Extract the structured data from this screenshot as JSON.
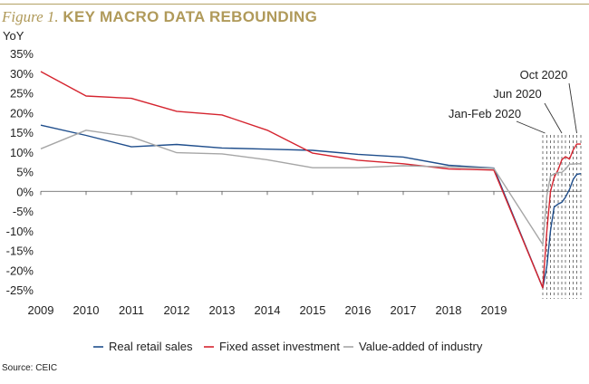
{
  "figure": {
    "prefix": "Figure 1.",
    "title": "KEY MACRO DATA REBOUNDING",
    "source": "Source: CEIC"
  },
  "chart_data": {
    "type": "line",
    "ylabel": "YoY",
    "xlabel": "",
    "ylim": [
      -25,
      35
    ],
    "xlim": [
      2009,
      2020.92
    ],
    "yticks": [
      35,
      30,
      25,
      20,
      15,
      10,
      5,
      0,
      -5,
      -10,
      -15,
      -20,
      -25
    ],
    "ytick_labels": [
      "35%",
      "30%",
      "25%",
      "20%",
      "15%",
      "10%",
      "5%",
      "0%",
      "-5%",
      "-10%",
      "-15%",
      "-20%",
      "-25%"
    ],
    "xticks": [
      2009,
      2010,
      2011,
      2012,
      2013,
      2014,
      2015,
      2016,
      2017,
      2018,
      2019
    ],
    "xtick_labels": [
      "2009",
      "2010",
      "2011",
      "2012",
      "2013",
      "2014",
      "2015",
      "2016",
      "2017",
      "2018",
      "2019"
    ],
    "legend_position": "bottom",
    "grid": false,
    "monthly_markers": [
      2020.08,
      2020.17,
      2020.25,
      2020.33,
      2020.42,
      2020.5,
      2020.58,
      2020.67,
      2020.75,
      2020.83,
      2020.92
    ],
    "annotations": [
      {
        "text": "Oct 2020",
        "x": 2020.83
      },
      {
        "text": "Jun 2020",
        "x": 2020.5
      },
      {
        "text": "Jan-Feb 2020",
        "x": 2020.13
      }
    ],
    "series": [
      {
        "name": "Real retail sales",
        "color": "#1f4e8c",
        "x": [
          2009,
          2010,
          2011,
          2012,
          2013,
          2014,
          2015,
          2016,
          2017,
          2018,
          2019,
          2020.08,
          2020.17,
          2020.25,
          2020.33,
          2020.42,
          2020.5,
          2020.58,
          2020.67,
          2020.75,
          2020.83,
          2020.92
        ],
        "y": [
          16.8,
          14.2,
          11.3,
          11.9,
          11.0,
          10.7,
          10.4,
          9.4,
          8.7,
          6.6,
          5.9,
          -24.5,
          -19.0,
          -10.0,
          -4.0,
          -3.2,
          -2.8,
          -1.5,
          0.5,
          3.0,
          4.3,
          4.5
        ]
      },
      {
        "name": "Fixed asset investment",
        "color": "#d5242f",
        "x": [
          2009,
          2010,
          2011,
          2012,
          2013,
          2014,
          2015,
          2016,
          2017,
          2018,
          2019,
          2020.08,
          2020.17,
          2020.25,
          2020.33,
          2020.42,
          2020.5,
          2020.58,
          2020.67,
          2020.75,
          2020.83,
          2020.92
        ],
        "y": [
          30.4,
          24.2,
          23.6,
          20.3,
          19.4,
          15.5,
          9.7,
          7.9,
          7.0,
          5.7,
          5.4,
          -24.5,
          -10.0,
          0.0,
          3.5,
          5.5,
          8.0,
          8.8,
          8.2,
          10.5,
          12.0,
          12.0
        ]
      },
      {
        "name": "Value-added of industry",
        "color": "#a6a6a6",
        "x": [
          2009,
          2010,
          2011,
          2012,
          2013,
          2014,
          2015,
          2016,
          2017,
          2018,
          2019,
          2020.08,
          2020.17,
          2020.25,
          2020.33,
          2020.42,
          2020.5,
          2020.58,
          2020.67,
          2020.75,
          2020.83,
          2020.92
        ],
        "y": [
          10.8,
          15.5,
          13.8,
          9.8,
          9.5,
          8.0,
          6.0,
          6.0,
          6.5,
          6.2,
          5.8,
          -13.5,
          -1.1,
          3.9,
          4.4,
          4.8,
          4.8,
          5.6,
          6.9,
          6.9,
          7.0,
          7.0
        ]
      }
    ]
  }
}
